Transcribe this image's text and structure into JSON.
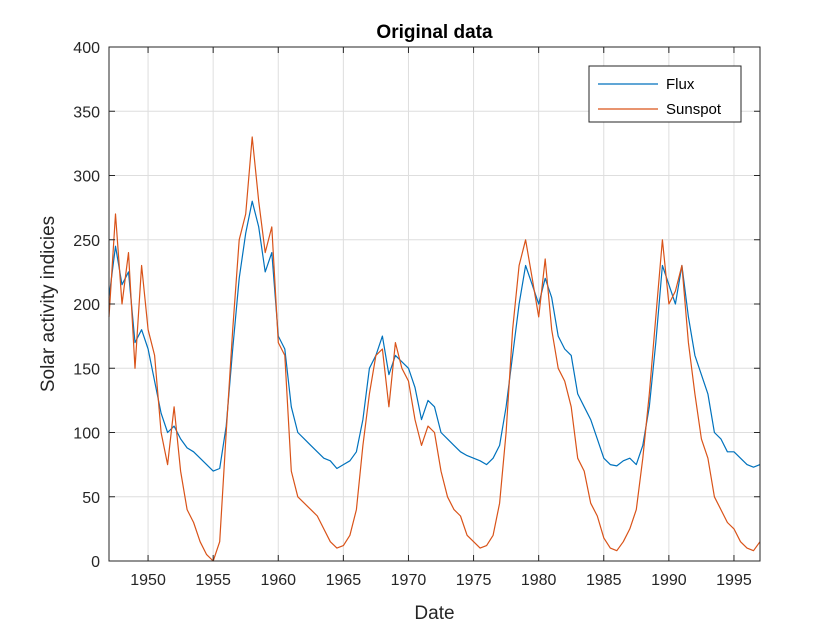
{
  "chart_data": {
    "type": "line",
    "title": "Original data",
    "xlabel": "Date",
    "ylabel": "Solar activity indicies",
    "xlim": [
      1947,
      1997
    ],
    "ylim": [
      0,
      400
    ],
    "xticks": [
      1950,
      1955,
      1960,
      1965,
      1970,
      1975,
      1980,
      1985,
      1990,
      1995
    ],
    "yticks": [
      0,
      50,
      100,
      150,
      200,
      250,
      300,
      350,
      400
    ],
    "grid": true,
    "legend_position": "top-right",
    "series": [
      {
        "name": "Flux",
        "color": "#0072BD",
        "x": [
          1947.0,
          1947.5,
          1948.0,
          1948.5,
          1949.0,
          1949.5,
          1950.0,
          1950.5,
          1951.0,
          1951.5,
          1952.0,
          1952.5,
          1953.0,
          1953.5,
          1954.0,
          1954.5,
          1955.0,
          1955.5,
          1956.0,
          1956.5,
          1957.0,
          1957.5,
          1958.0,
          1958.5,
          1959.0,
          1959.5,
          1960.0,
          1960.5,
          1961.0,
          1961.5,
          1962.0,
          1962.5,
          1963.0,
          1963.5,
          1964.0,
          1964.5,
          1965.0,
          1965.5,
          1966.0,
          1966.5,
          1967.0,
          1967.5,
          1968.0,
          1968.5,
          1969.0,
          1969.5,
          1970.0,
          1970.5,
          1971.0,
          1971.5,
          1972.0,
          1972.5,
          1973.0,
          1973.5,
          1974.0,
          1974.5,
          1975.0,
          1975.5,
          1976.0,
          1976.5,
          1977.0,
          1977.5,
          1978.0,
          1978.5,
          1979.0,
          1979.5,
          1980.0,
          1980.5,
          1981.0,
          1981.5,
          1982.0,
          1982.5,
          1983.0,
          1983.5,
          1984.0,
          1984.5,
          1985.0,
          1985.5,
          1986.0,
          1986.5,
          1987.0,
          1987.5,
          1988.0,
          1988.5,
          1989.0,
          1989.5,
          1990.0,
          1990.5,
          1991.0,
          1991.5,
          1992.0,
          1992.5,
          1993.0,
          1993.5,
          1994.0,
          1994.5,
          1995.0,
          1995.5,
          1996.0,
          1996.5,
          1997.0
        ],
        "values": [
          205,
          245,
          215,
          225,
          170,
          180,
          165,
          140,
          115,
          100,
          105,
          95,
          88,
          85,
          80,
          75,
          70,
          72,
          105,
          165,
          220,
          255,
          280,
          260,
          225,
          240,
          175,
          165,
          120,
          100,
          95,
          90,
          85,
          80,
          78,
          72,
          75,
          78,
          85,
          110,
          150,
          160,
          175,
          145,
          160,
          155,
          150,
          135,
          110,
          125,
          120,
          100,
          95,
          90,
          85,
          82,
          80,
          78,
          75,
          80,
          90,
          120,
          160,
          200,
          230,
          215,
          200,
          220,
          205,
          175,
          165,
          160,
          130,
          120,
          110,
          95,
          80,
          75,
          74,
          78,
          80,
          75,
          90,
          120,
          170,
          230,
          215,
          200,
          230,
          190,
          160,
          145,
          130,
          100,
          95,
          85,
          85,
          80,
          75,
          73,
          75
        ]
      },
      {
        "name": "Sunspot",
        "color": "#D95319",
        "x": [
          1947.0,
          1947.5,
          1948.0,
          1948.5,
          1949.0,
          1949.5,
          1950.0,
          1950.5,
          1951.0,
          1951.5,
          1952.0,
          1952.5,
          1953.0,
          1953.5,
          1954.0,
          1954.5,
          1955.0,
          1955.5,
          1956.0,
          1956.5,
          1957.0,
          1957.5,
          1958.0,
          1958.5,
          1959.0,
          1959.5,
          1960.0,
          1960.5,
          1961.0,
          1961.5,
          1962.0,
          1962.5,
          1963.0,
          1963.5,
          1964.0,
          1964.5,
          1965.0,
          1965.5,
          1966.0,
          1966.5,
          1967.0,
          1967.5,
          1968.0,
          1968.5,
          1969.0,
          1969.5,
          1970.0,
          1970.5,
          1971.0,
          1971.5,
          1972.0,
          1972.5,
          1973.0,
          1973.5,
          1974.0,
          1974.5,
          1975.0,
          1975.5,
          1976.0,
          1976.5,
          1977.0,
          1977.5,
          1978.0,
          1978.5,
          1979.0,
          1979.5,
          1980.0,
          1980.5,
          1981.0,
          1981.5,
          1982.0,
          1982.5,
          1983.0,
          1983.5,
          1984.0,
          1984.5,
          1985.0,
          1985.5,
          1986.0,
          1986.5,
          1987.0,
          1987.5,
          1988.0,
          1988.5,
          1989.0,
          1989.5,
          1990.0,
          1990.5,
          1991.0,
          1991.5,
          1992.0,
          1992.5,
          1993.0,
          1993.5,
          1994.0,
          1994.5,
          1995.0,
          1995.5,
          1996.0,
          1996.5,
          1997.0
        ],
        "values": [
          190,
          270,
          200,
          240,
          150,
          230,
          180,
          160,
          100,
          75,
          120,
          70,
          40,
          30,
          15,
          5,
          0,
          15,
          100,
          180,
          250,
          270,
          330,
          280,
          240,
          260,
          170,
          160,
          70,
          50,
          45,
          40,
          35,
          25,
          15,
          10,
          12,
          20,
          40,
          90,
          130,
          160,
          165,
          120,
          170,
          150,
          140,
          110,
          90,
          105,
          100,
          70,
          50,
          40,
          35,
          20,
          15,
          10,
          12,
          20,
          45,
          100,
          180,
          230,
          250,
          220,
          190,
          235,
          180,
          150,
          140,
          120,
          80,
          70,
          45,
          35,
          18,
          10,
          8,
          15,
          25,
          40,
          80,
          130,
          190,
          250,
          200,
          210,
          230,
          170,
          130,
          95,
          80,
          50,
          40,
          30,
          25,
          15,
          10,
          8,
          15
        ]
      }
    ]
  }
}
